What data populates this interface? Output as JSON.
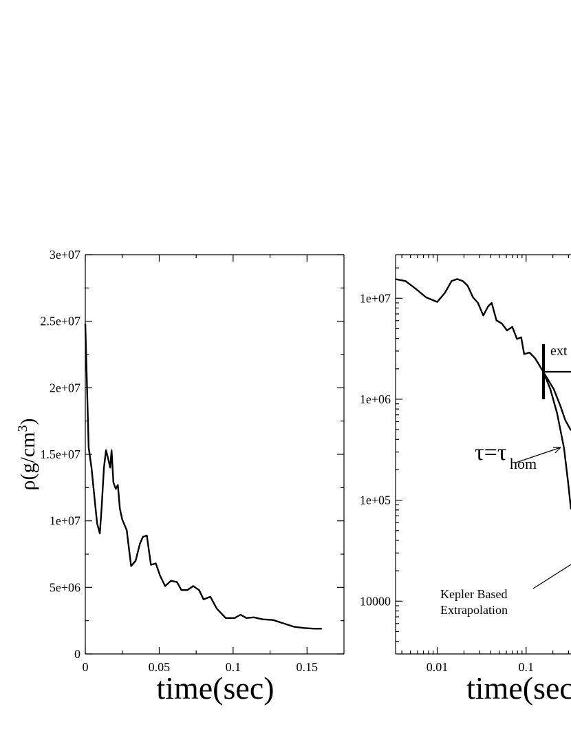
{
  "chart_data": [
    {
      "type": "line",
      "color": "#000000",
      "xlim": [
        0,
        0.175
      ],
      "ylim": [
        0,
        30000000
      ],
      "xticks": [
        0,
        0.05,
        0.1,
        0.15
      ],
      "yticks": [
        0,
        {
          "value": 5000000,
          "label": "5e+06"
        },
        {
          "value": 10000000,
          "label": "1e+07"
        },
        {
          "value": 15000000,
          "label": "1.5e+07"
        },
        {
          "value": 20000000,
          "label": "2e+07"
        },
        {
          "value": 25000000,
          "label": "2.5e+07"
        },
        {
          "value": 30000000,
          "label": "3e+07"
        }
      ],
      "xlabel": "time(sec)",
      "ylabel": [
        "ρ(g/cm",
        "3",
        ")"
      ],
      "x": [
        0,
        0.0014,
        0.0023,
        0.0042,
        0.0065,
        0.008,
        0.0098,
        0.011,
        0.0126,
        0.014,
        0.0154,
        0.0168,
        0.0178,
        0.019,
        0.0206,
        0.022,
        0.0234,
        0.025,
        0.028,
        0.031,
        0.034,
        0.037,
        0.039,
        0.0416,
        0.0444,
        0.0477,
        0.0505,
        0.054,
        0.058,
        0.062,
        0.065,
        0.069,
        0.073,
        0.077,
        0.08,
        0.0846,
        0.089,
        0.095,
        0.101,
        0.105,
        0.109,
        0.114,
        0.12,
        0.127,
        0.134,
        0.141,
        0.148,
        0.155,
        0.16
      ],
      "values": [
        24800000,
        19100000,
        15500000,
        14000000,
        11400000,
        9800000,
        9050000,
        10900000,
        14000000,
        15300000,
        14700000,
        14000000,
        15300000,
        12900000,
        12400000,
        12700000,
        10900000,
        10100000,
        9300000,
        6600000,
        7000000,
        8300000,
        8800000,
        8900000,
        6700000,
        6800000,
        5900000,
        5100000,
        5500000,
        5400000,
        4800000,
        4800000,
        5100000,
        4800000,
        4100000,
        4300000,
        3400000,
        2700000,
        2700000,
        2950000,
        2700000,
        2750000,
        2600000,
        2550000,
        2300000,
        2050000,
        1950000,
        1900000,
        1900000
      ]
    },
    {
      "type": "line",
      "color": "#000000",
      "xlog": true,
      "ylog": true,
      "xlim": [
        0.0034,
        0.32
      ],
      "ylim": [
        3000,
        27000000
      ],
      "xticks": [
        0.01,
        0.1
      ],
      "yticks": [
        10000,
        {
          "value": 100000,
          "label": "1e+05"
        },
        {
          "value": 1000000,
          "label": "1e+06"
        },
        {
          "value": 10000000,
          "label": "1e+07"
        }
      ],
      "xlabel": "time(sec",
      "annotations": [
        "ext",
        "τ=τ",
        "hom",
        "Kepler Based",
        "Extrapolation"
      ],
      "series": [
        {
          "x": [
            0.00337,
            0.0044,
            0.0058,
            0.0075,
            0.01,
            0.0122,
            0.0145,
            0.0168,
            0.0194,
            0.022,
            0.0253,
            0.0287,
            0.033,
            0.0374,
            0.041,
            0.0464,
            0.0535,
            0.061,
            0.07,
            0.079,
            0.088,
            0.095,
            0.109,
            0.126,
            0.156
          ],
          "values": [
            15500000,
            14800000,
            12300000,
            10200000,
            9200000,
            11300000,
            14800000,
            15500000,
            14800000,
            13300000,
            10200000,
            9000000,
            6750000,
            8300000,
            9000000,
            6050000,
            5600000,
            4800000,
            5200000,
            3950000,
            4100000,
            2800000,
            2900000,
            2550000,
            1870000
          ]
        },
        {
          "x": [
            0.156,
            0.32
          ],
          "values": [
            1870000,
            1870000
          ]
        },
        {
          "x": [
            0.156,
            0.2045,
            0.244,
            0.276,
            0.32
          ],
          "values": [
            1870000,
            1260000,
            850000,
            620000,
            490000
          ]
        },
        {
          "x": [
            0.156,
            0.187,
            0.223,
            0.267,
            0.297,
            0.32
          ],
          "values": [
            1870000,
            1260000,
            730000,
            330000,
            150000,
            81000
          ]
        }
      ]
    }
  ]
}
